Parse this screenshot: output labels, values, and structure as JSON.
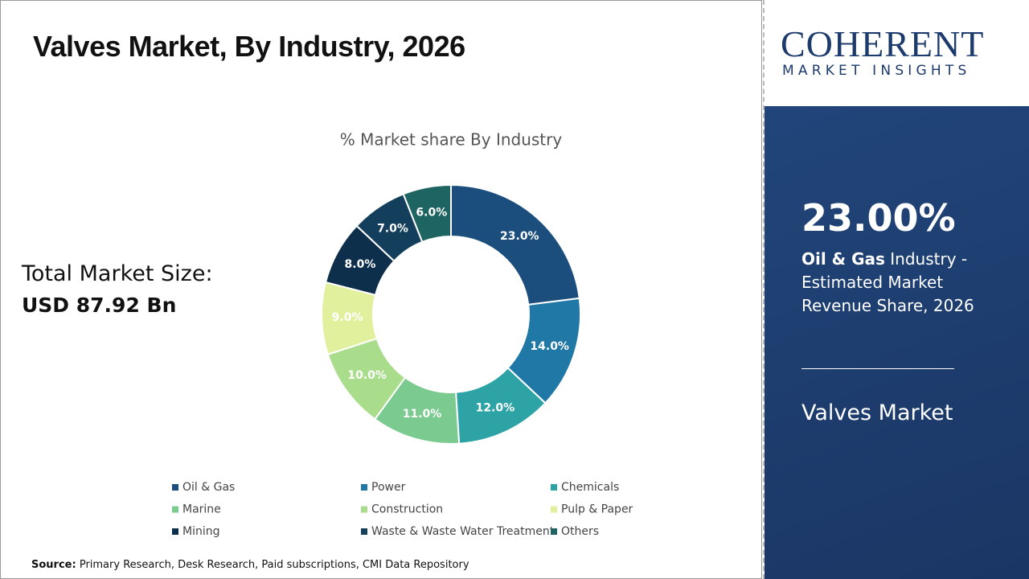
{
  "title": "Valves Market, By Industry, 2026",
  "total_market": {
    "label": "Total Market Size:",
    "value": "USD 87.92 Bn"
  },
  "source": {
    "label": "Source:",
    "text": "Primary Research, Desk Research, Paid subscriptions, CMI Data Repository"
  },
  "logo": {
    "name": "COHERENT",
    "tagline": "MARKET INSIGHTS"
  },
  "sidebar": {
    "highlight": "23.00%",
    "segment": "Oil & Gas",
    "description": "Industry - Estimated Market Revenue Share, 2026",
    "market": "Valves Market"
  },
  "chart_data": {
    "type": "donut",
    "title": "% Market share By Industry",
    "categories": [
      "Oil & Gas",
      "Power",
      "Chemicals",
      "Marine",
      "Construction",
      "Pulp & Paper",
      "Mining",
      "Waste & Waste Water Treatment",
      "Others"
    ],
    "values": [
      23,
      14,
      12,
      11,
      10,
      9,
      8,
      7,
      6
    ],
    "value_labels": [
      "23.0%",
      "14.0%",
      "12.0%",
      "11.0%",
      "10.0%",
      "9.0%",
      "8.0%",
      "7.0%",
      "6.0%"
    ],
    "colors": [
      "#1b4e7c",
      "#1f78a6",
      "#2ea3a5",
      "#7bcb90",
      "#a9dd8b",
      "#e0f09c",
      "#0e2f4b",
      "#143f5c",
      "#1e6462"
    ]
  }
}
